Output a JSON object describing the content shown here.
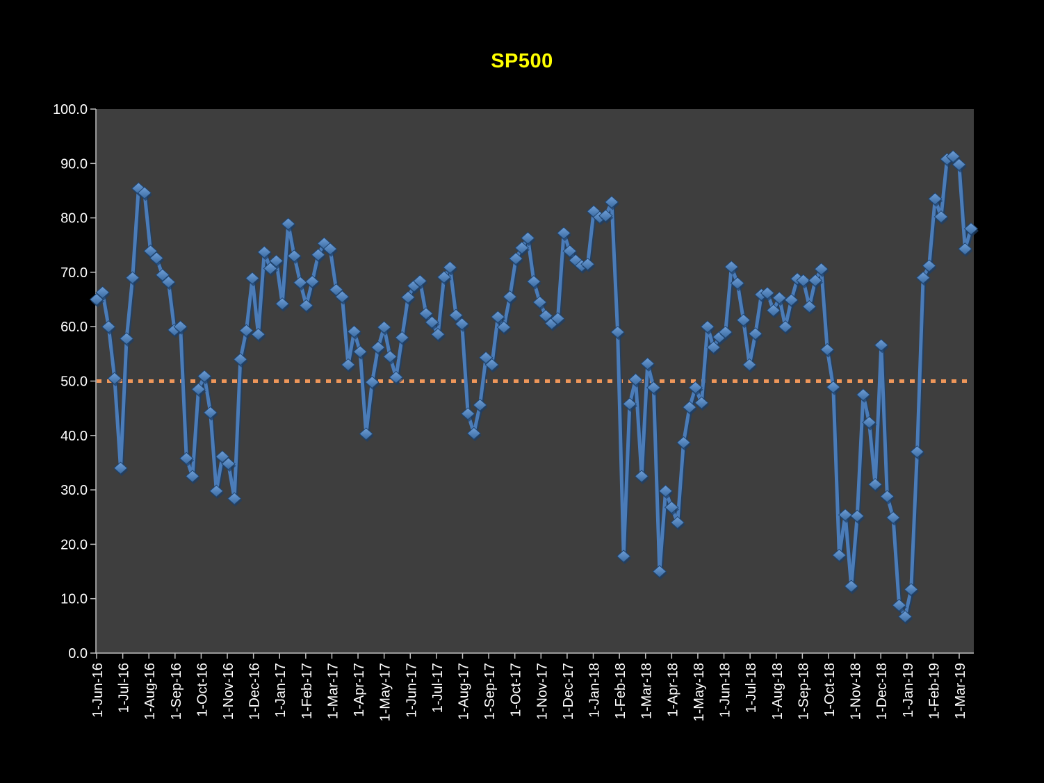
{
  "title": "SP500",
  "colors": {
    "page_bg": "#000000",
    "plot_bg": "#3E3E3E",
    "title": "#FFFF00",
    "axis": "#BFBFBF",
    "tick_label": "#FFFFFF",
    "series_line": "#4B7CB8",
    "series_line_shadow": "#1E3F66",
    "marker_fill_light": "#6F9FD8",
    "marker_fill_dark": "#3A6AA0",
    "marker_stroke": "#1F4571",
    "reference_line": "#F0975A"
  },
  "chart_data": {
    "type": "line",
    "title": "SP500",
    "xlabel": "",
    "ylabel": "",
    "ylim": [
      0,
      100
    ],
    "grid": false,
    "legend": "none",
    "marker": "diamond",
    "y_tick_labels": [
      "0.0",
      "10.0",
      "20.0",
      "30.0",
      "40.0",
      "50.0",
      "60.0",
      "70.0",
      "80.0",
      "90.0",
      "100.0"
    ],
    "x_tick_labels": [
      "1-Jun-16",
      "1-Jul-16",
      "1-Aug-16",
      "1-Sep-16",
      "1-Oct-16",
      "1-Nov-16",
      "1-Dec-16",
      "1-Jan-17",
      "1-Feb-17",
      "1-Mar-17",
      "1-Apr-17",
      "1-May-17",
      "1-Jun-17",
      "1-Jul-17",
      "1-Aug-17",
      "1-Sep-17",
      "1-Oct-17",
      "1-Nov-17",
      "1-Dec-17",
      "1-Jan-18",
      "1-Feb-18",
      "1-Mar-18",
      "1-Apr-18",
      "1-May-18",
      "1-Jun-18",
      "1-Jul-18",
      "1-Aug-18",
      "1-Sep-18",
      "1-Oct-18",
      "1-Nov-18",
      "1-Dec-18",
      "1-Jan-19",
      "1-Feb-19",
      "1-Mar-19"
    ],
    "reference_line": {
      "value": 50.0,
      "style": "dotted"
    },
    "series": [
      {
        "name": "SP500",
        "cadence": "weekly",
        "values": [
          65.0,
          66.3,
          60.0,
          50.5,
          34.0,
          57.8,
          69.0,
          85.4,
          84.6,
          73.9,
          72.6,
          69.5,
          68.2,
          59.4,
          60.0,
          35.8,
          32.5,
          48.5,
          50.9,
          44.2,
          29.8,
          36.1,
          34.8,
          28.4,
          54.0,
          59.3,
          68.9,
          58.6,
          73.7,
          70.7,
          72.1,
          64.2,
          78.9,
          73.0,
          68.1,
          63.9,
          68.3,
          73.2,
          75.3,
          74.3,
          66.8,
          65.5,
          53.0,
          59.1,
          55.4,
          40.3,
          49.8,
          56.2,
          59.9,
          54.5,
          50.7,
          58.0,
          65.4,
          67.5,
          68.4,
          62.4,
          60.8,
          58.6,
          69.1,
          70.9,
          62.1,
          60.5,
          44.0,
          40.4,
          45.6,
          54.3,
          53.0,
          61.8,
          59.9,
          65.5,
          72.5,
          74.5,
          76.3,
          68.3,
          64.5,
          62.0,
          60.6,
          61.5,
          77.2,
          73.9,
          72.2,
          71.2,
          71.5,
          81.2,
          80.1,
          80.4,
          82.9,
          59.0,
          17.8,
          45.8,
          50.3,
          32.5,
          53.2,
          48.8,
          15.0,
          29.8,
          26.8,
          24.0,
          38.7,
          45.2,
          48.8,
          46.0,
          60.0,
          56.2,
          58.1,
          59.0,
          71.0,
          68.0,
          61.2,
          53.0,
          58.7,
          65.9,
          66.2,
          63.0,
          65.3,
          60.0,
          64.9,
          68.8,
          68.5,
          63.7,
          68.5,
          70.6,
          55.8,
          48.9,
          18.0,
          25.4,
          12.3,
          25.2,
          47.5,
          42.4,
          31.0,
          56.6,
          28.8,
          24.9,
          8.8,
          6.7,
          11.7,
          37.0,
          69.0,
          71.2,
          83.5,
          80.2,
          90.8,
          91.3,
          89.8,
          74.3,
          78.0
        ]
      }
    ]
  }
}
